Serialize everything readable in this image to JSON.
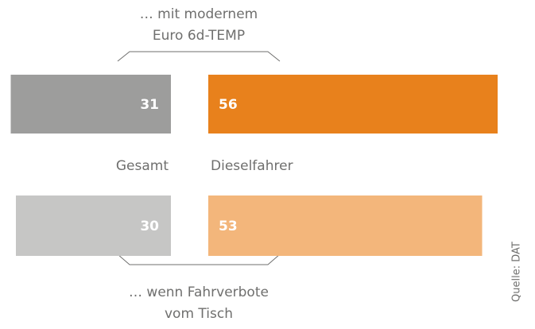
{
  "chart_data": {
    "type": "bar",
    "categories": [
      [
        "… mit modernem",
        "Euro 6d-TEMP"
      ],
      [
        "… wenn Fahrverbote",
        "vom Tisch"
      ]
    ],
    "series": [
      {
        "name": "Gesamt",
        "colors": [
          "#9d9d9c",
          "#c6c6c5"
        ],
        "values": [
          31,
          30
        ]
      },
      {
        "name": "Dieselfahrer",
        "colors": [
          "#e8811c",
          "#f3b67b"
        ],
        "values": [
          56,
          53
        ]
      }
    ],
    "source": "Quelle: DAT"
  }
}
